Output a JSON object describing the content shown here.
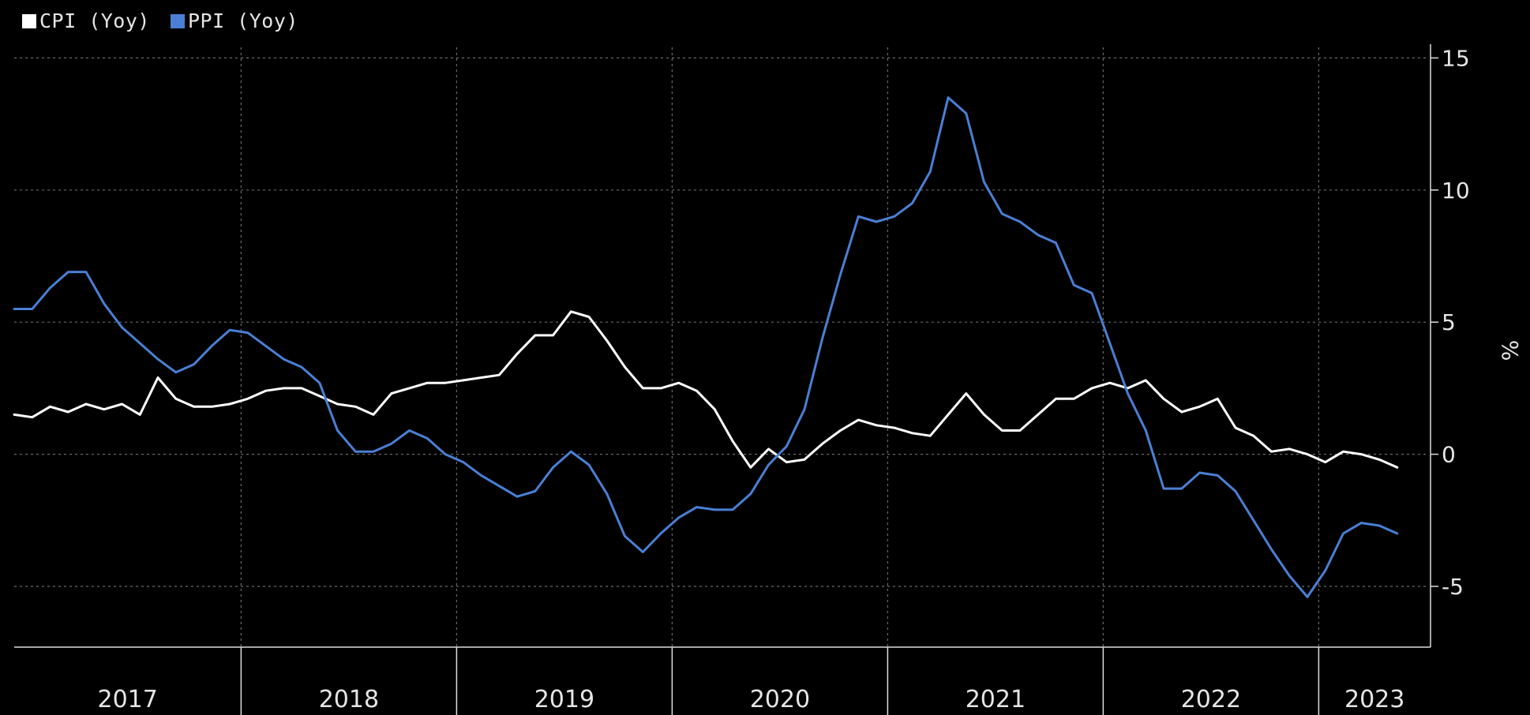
{
  "chart_data": {
    "type": "line",
    "title": "",
    "xlabel": "",
    "ylabel": "%",
    "ylim": [
      -7.3,
      15.4
    ],
    "yticks": [
      15,
      10,
      5,
      0,
      -5
    ],
    "ytick_labels": [
      "15",
      "10",
      "5",
      "0",
      "-5"
    ],
    "grid": true,
    "legend_position": "top-left",
    "x_start": "2016-12",
    "year_labels": [
      "2017",
      "2018",
      "2019",
      "2020",
      "2021",
      "2022",
      "2023"
    ],
    "series": [
      {
        "name": "CPI (Yoy)",
        "color": "#ffffff",
        "values": [
          1.5,
          1.4,
          1.8,
          1.6,
          1.9,
          1.7,
          1.9,
          1.5,
          2.9,
          2.1,
          1.8,
          1.8,
          1.9,
          2.1,
          2.4,
          2.5,
          2.5,
          2.2,
          1.9,
          1.8,
          1.5,
          2.3,
          2.5,
          2.7,
          2.7,
          2.8,
          2.9,
          3.0,
          3.8,
          4.5,
          4.5,
          5.4,
          5.2,
          4.3,
          3.3,
          2.5,
          2.5,
          2.7,
          2.4,
          1.7,
          0.5,
          -0.5,
          0.2,
          -0.3,
          -0.2,
          0.4,
          0.9,
          1.3,
          1.1,
          1.0,
          0.8,
          0.7,
          1.5,
          2.3,
          1.5,
          0.9,
          0.9,
          1.5,
          2.1,
          2.1,
          2.5,
          2.7,
          2.5,
          2.8,
          2.1,
          1.6,
          1.8,
          2.1,
          1.0,
          0.7,
          0.1,
          0.2,
          0.0,
          -0.3,
          0.1,
          0.0,
          -0.2,
          -0.5
        ]
      },
      {
        "name": "PPI (Yoy)",
        "color": "#4a7fd4",
        "values": [
          5.5,
          5.5,
          6.3,
          6.9,
          6.9,
          5.7,
          4.8,
          4.2,
          3.6,
          3.1,
          3.4,
          4.1,
          4.7,
          4.6,
          4.1,
          3.6,
          3.3,
          2.7,
          0.9,
          0.1,
          0.1,
          0.4,
          0.9,
          0.6,
          0.0,
          -0.3,
          -0.8,
          -1.2,
          -1.6,
          -1.4,
          -0.5,
          0.1,
          -0.4,
          -1.5,
          -3.1,
          -3.7,
          -3.0,
          -2.4,
          -2.0,
          -2.1,
          -2.1,
          -1.5,
          -0.4,
          0.3,
          1.7,
          4.4,
          6.8,
          9.0,
          8.8,
          9.0,
          9.5,
          10.7,
          13.5,
          12.9,
          10.3,
          9.1,
          8.8,
          8.3,
          8.0,
          6.4,
          6.1,
          4.2,
          2.3,
          0.9,
          -1.3,
          -1.3,
          -0.7,
          -0.8,
          -1.4,
          -2.5,
          -3.6,
          -4.6,
          -5.4,
          -4.4,
          -3.0,
          -2.6,
          -2.7,
          -3.0
        ]
      }
    ]
  }
}
